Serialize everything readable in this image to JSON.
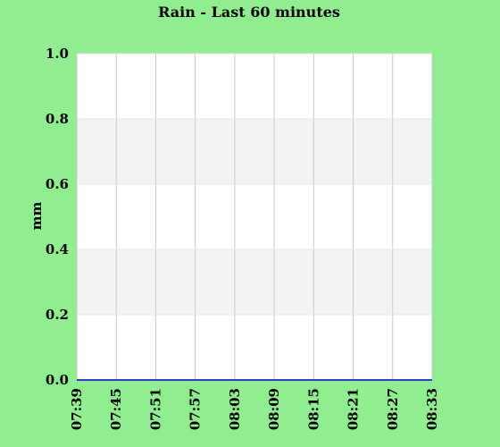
{
  "chart_data": {
    "type": "line",
    "title": "Rain - Last 60 minutes",
    "xlabel": "",
    "ylabel": "mm",
    "x": [
      "07:39",
      "07:45",
      "07:51",
      "07:57",
      "08:03",
      "08:09",
      "08:15",
      "08:21",
      "08:27",
      "08:33"
    ],
    "series": [
      {
        "values": [
          0,
          0,
          0,
          0,
          0,
          0,
          0,
          0,
          0,
          0
        ]
      }
    ],
    "ylim": [
      0,
      1
    ],
    "yticks": [
      "0.0",
      "0.2",
      "0.4",
      "0.6",
      "0.8",
      "1.0"
    ],
    "grid": true,
    "colors": {
      "background": "#90ee90",
      "plot": "#ffffff",
      "band": "#f3f3f3",
      "grid": "#c8c8c8",
      "line": "#0000cc"
    }
  }
}
